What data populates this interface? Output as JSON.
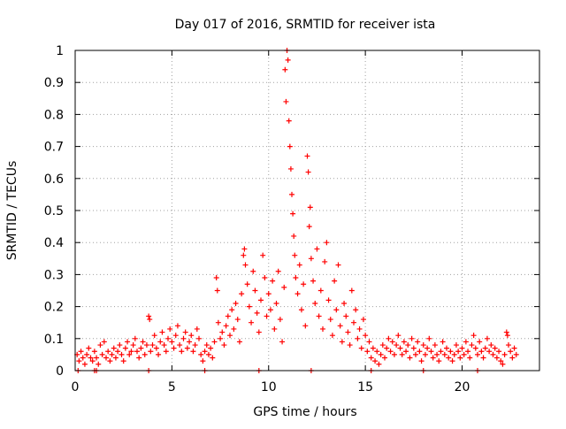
{
  "colors": {
    "series": "#ff0000",
    "axis": "#000000",
    "grid": "#a0a0a0",
    "background": "#ffffff"
  },
  "chart_data": {
    "type": "scatter",
    "title": "Day 017 of 2016, SRMTID for receiver ista",
    "xlabel": "GPS time / hours",
    "ylabel": "SRMTID / TECUs",
    "xlim": [
      0,
      24
    ],
    "ylim": [
      0,
      1
    ],
    "x_ticks": [
      0,
      5,
      10,
      15,
      20
    ],
    "x_tick_labels": [
      "0",
      "5",
      "10",
      "15",
      "20"
    ],
    "y_ticks": [
      0,
      0.1,
      0.2,
      0.3,
      0.4,
      0.5,
      0.6,
      0.7,
      0.8,
      0.9,
      1
    ],
    "y_tick_labels": [
      "0",
      "0.1",
      "0.2",
      "0.3",
      "0.4",
      "0.5",
      "0.6",
      "0.7",
      "0.8",
      "0.9",
      "1"
    ],
    "grid": true,
    "marker": "+",
    "series": [
      {
        "name": "SRMTID",
        "points": [
          [
            0.1,
            0.05
          ],
          [
            0.2,
            0.03
          ],
          [
            0.3,
            0.06
          ],
          [
            0.4,
            0.04
          ],
          [
            0.5,
            0.02
          ],
          [
            0.6,
            0.05
          ],
          [
            0.7,
            0.07
          ],
          [
            0.8,
            0.04
          ],
          [
            0.9,
            0.03
          ],
          [
            1.0,
            0.06
          ],
          [
            1.1,
            0.04
          ],
          [
            1.2,
            0.02
          ],
          [
            1.3,
            0.08
          ],
          [
            1.4,
            0.05
          ],
          [
            1.5,
            0.09
          ],
          [
            1.6,
            0.04
          ],
          [
            1.7,
            0.06
          ],
          [
            1.8,
            0.03
          ],
          [
            1.9,
            0.05
          ],
          [
            2.0,
            0.07
          ],
          [
            2.1,
            0.04
          ],
          [
            2.2,
            0.06
          ],
          [
            2.3,
            0.08
          ],
          [
            2.4,
            0.05
          ],
          [
            2.5,
            0.03
          ],
          [
            2.6,
            0.07
          ],
          [
            2.7,
            0.09
          ],
          [
            2.8,
            0.05
          ],
          [
            2.9,
            0.06
          ],
          [
            3.0,
            0.08
          ],
          [
            3.1,
            0.1
          ],
          [
            3.2,
            0.06
          ],
          [
            3.3,
            0.04
          ],
          [
            3.4,
            0.07
          ],
          [
            3.5,
            0.09
          ],
          [
            3.6,
            0.05
          ],
          [
            3.7,
            0.08
          ],
          [
            3.8,
            0.17
          ],
          [
            3.85,
            0.16
          ],
          [
            3.9,
            0.06
          ],
          [
            4.0,
            0.08
          ],
          [
            4.1,
            0.11
          ],
          [
            4.2,
            0.07
          ],
          [
            4.3,
            0.05
          ],
          [
            4.4,
            0.09
          ],
          [
            4.5,
            0.12
          ],
          [
            4.6,
            0.08
          ],
          [
            4.7,
            0.06
          ],
          [
            4.8,
            0.1
          ],
          [
            4.9,
            0.13
          ],
          [
            5.0,
            0.09
          ],
          [
            5.1,
            0.07
          ],
          [
            5.2,
            0.11
          ],
          [
            5.3,
            0.14
          ],
          [
            5.4,
            0.08
          ],
          [
            5.5,
            0.06
          ],
          [
            5.6,
            0.1
          ],
          [
            5.7,
            0.12
          ],
          [
            5.8,
            0.07
          ],
          [
            5.9,
            0.09
          ],
          [
            6.0,
            0.11
          ],
          [
            6.1,
            0.06
          ],
          [
            6.2,
            0.08
          ],
          [
            6.3,
            0.13
          ],
          [
            6.4,
            0.1
          ],
          [
            6.5,
            0.05
          ],
          [
            6.6,
            0.03
          ],
          [
            6.7,
            0.06
          ],
          [
            6.8,
            0.08
          ],
          [
            6.9,
            0.05
          ],
          [
            7.0,
            0.07
          ],
          [
            7.1,
            0.04
          ],
          [
            7.2,
            0.09
          ],
          [
            7.3,
            0.29
          ],
          [
            7.35,
            0.25
          ],
          [
            7.4,
            0.15
          ],
          [
            7.5,
            0.1
          ],
          [
            7.6,
            0.12
          ],
          [
            7.7,
            0.08
          ],
          [
            7.8,
            0.14
          ],
          [
            7.9,
            0.17
          ],
          [
            8.0,
            0.11
          ],
          [
            8.1,
            0.19
          ],
          [
            8.2,
            0.13
          ],
          [
            8.3,
            0.21
          ],
          [
            8.4,
            0.16
          ],
          [
            8.5,
            0.09
          ],
          [
            8.6,
            0.24
          ],
          [
            8.7,
            0.36
          ],
          [
            8.75,
            0.38
          ],
          [
            8.8,
            0.33
          ],
          [
            8.9,
            0.27
          ],
          [
            9.0,
            0.2
          ],
          [
            9.1,
            0.15
          ],
          [
            9.2,
            0.31
          ],
          [
            9.3,
            0.25
          ],
          [
            9.4,
            0.18
          ],
          [
            9.5,
            0.12
          ],
          [
            9.6,
            0.22
          ],
          [
            9.7,
            0.36
          ],
          [
            9.8,
            0.29
          ],
          [
            9.9,
            0.17
          ],
          [
            10.0,
            0.24
          ],
          [
            10.1,
            0.19
          ],
          [
            10.2,
            0.28
          ],
          [
            10.3,
            0.13
          ],
          [
            10.4,
            0.21
          ],
          [
            10.5,
            0.31
          ],
          [
            10.6,
            0.16
          ],
          [
            10.7,
            0.09
          ],
          [
            10.8,
            0.26
          ],
          [
            10.85,
            0.94
          ],
          [
            10.9,
            0.84
          ],
          [
            10.95,
            1.0
          ],
          [
            11.0,
            0.97
          ],
          [
            11.05,
            0.78
          ],
          [
            11.1,
            0.7
          ],
          [
            11.15,
            0.63
          ],
          [
            11.2,
            0.55
          ],
          [
            11.25,
            0.49
          ],
          [
            11.3,
            0.42
          ],
          [
            11.35,
            0.36
          ],
          [
            11.4,
            0.29
          ],
          [
            11.5,
            0.24
          ],
          [
            11.6,
            0.33
          ],
          [
            11.7,
            0.19
          ],
          [
            11.8,
            0.27
          ],
          [
            11.9,
            0.14
          ],
          [
            12.0,
            0.67
          ],
          [
            12.05,
            0.62
          ],
          [
            12.1,
            0.45
          ],
          [
            12.15,
            0.51
          ],
          [
            12.2,
            0.35
          ],
          [
            12.3,
            0.28
          ],
          [
            12.4,
            0.21
          ],
          [
            12.5,
            0.38
          ],
          [
            12.6,
            0.17
          ],
          [
            12.7,
            0.25
          ],
          [
            12.8,
            0.13
          ],
          [
            12.9,
            0.34
          ],
          [
            13.0,
            0.4
          ],
          [
            13.1,
            0.22
          ],
          [
            13.2,
            0.16
          ],
          [
            13.3,
            0.11
          ],
          [
            13.4,
            0.28
          ],
          [
            13.5,
            0.19
          ],
          [
            13.6,
            0.33
          ],
          [
            13.7,
            0.14
          ],
          [
            13.8,
            0.09
          ],
          [
            13.9,
            0.21
          ],
          [
            14.0,
            0.17
          ],
          [
            14.1,
            0.12
          ],
          [
            14.2,
            0.08
          ],
          [
            14.3,
            0.25
          ],
          [
            14.4,
            0.15
          ],
          [
            14.5,
            0.19
          ],
          [
            14.6,
            0.1
          ],
          [
            14.7,
            0.13
          ],
          [
            14.8,
            0.07
          ],
          [
            14.9,
            0.16
          ],
          [
            15.0,
            0.11
          ],
          [
            15.1,
            0.06
          ],
          [
            15.2,
            0.09
          ],
          [
            15.3,
            0.04
          ],
          [
            15.4,
            0.07
          ],
          [
            15.5,
            0.03
          ],
          [
            15.6,
            0.06
          ],
          [
            15.7,
            0.02
          ],
          [
            15.8,
            0.05
          ],
          [
            15.9,
            0.08
          ],
          [
            16.0,
            0.04
          ],
          [
            16.1,
            0.07
          ],
          [
            16.2,
            0.1
          ],
          [
            16.3,
            0.06
          ],
          [
            16.4,
            0.09
          ],
          [
            16.5,
            0.05
          ],
          [
            16.6,
            0.08
          ],
          [
            16.7,
            0.11
          ],
          [
            16.8,
            0.07
          ],
          [
            16.9,
            0.05
          ],
          [
            17.0,
            0.09
          ],
          [
            17.1,
            0.06
          ],
          [
            17.2,
            0.08
          ],
          [
            17.3,
            0.04
          ],
          [
            17.4,
            0.1
          ],
          [
            17.5,
            0.07
          ],
          [
            17.6,
            0.05
          ],
          [
            17.7,
            0.09
          ],
          [
            17.8,
            0.06
          ],
          [
            17.9,
            0.03
          ],
          [
            18.0,
            0.08
          ],
          [
            18.1,
            0.05
          ],
          [
            18.2,
            0.07
          ],
          [
            18.3,
            0.1
          ],
          [
            18.4,
            0.06
          ],
          [
            18.5,
            0.04
          ],
          [
            18.6,
            0.08
          ],
          [
            18.7,
            0.05
          ],
          [
            18.8,
            0.03
          ],
          [
            18.9,
            0.06
          ],
          [
            19.0,
            0.09
          ],
          [
            19.1,
            0.05
          ],
          [
            19.2,
            0.07
          ],
          [
            19.3,
            0.04
          ],
          [
            19.4,
            0.06
          ],
          [
            19.5,
            0.03
          ],
          [
            19.6,
            0.05
          ],
          [
            19.7,
            0.08
          ],
          [
            19.8,
            0.06
          ],
          [
            19.9,
            0.04
          ],
          [
            20.0,
            0.07
          ],
          [
            20.1,
            0.05
          ],
          [
            20.2,
            0.09
          ],
          [
            20.3,
            0.06
          ],
          [
            20.4,
            0.04
          ],
          [
            20.5,
            0.08
          ],
          [
            20.6,
            0.11
          ],
          [
            20.7,
            0.07
          ],
          [
            20.8,
            0.05
          ],
          [
            20.9,
            0.09
          ],
          [
            21.0,
            0.06
          ],
          [
            21.1,
            0.04
          ],
          [
            21.2,
            0.07
          ],
          [
            21.3,
            0.1
          ],
          [
            21.4,
            0.06
          ],
          [
            21.5,
            0.08
          ],
          [
            21.6,
            0.05
          ],
          [
            21.7,
            0.07
          ],
          [
            21.8,
            0.04
          ],
          [
            21.9,
            0.06
          ],
          [
            22.0,
            0.03
          ],
          [
            22.1,
            0.02
          ],
          [
            22.2,
            0.05
          ],
          [
            22.3,
            0.12
          ],
          [
            22.35,
            0.11
          ],
          [
            22.4,
            0.08
          ],
          [
            22.5,
            0.06
          ],
          [
            22.6,
            0.04
          ],
          [
            22.7,
            0.07
          ],
          [
            22.8,
            0.05
          ],
          [
            0.15,
            0.0
          ],
          [
            1.0,
            0.0
          ],
          [
            1.1,
            0.0
          ],
          [
            3.8,
            0.0
          ],
          [
            6.7,
            0.0
          ],
          [
            9.5,
            0.0
          ],
          [
            12.2,
            0.0
          ],
          [
            15.3,
            0.0
          ],
          [
            18.0,
            0.0
          ],
          [
            20.8,
            0.0
          ]
        ]
      }
    ]
  }
}
